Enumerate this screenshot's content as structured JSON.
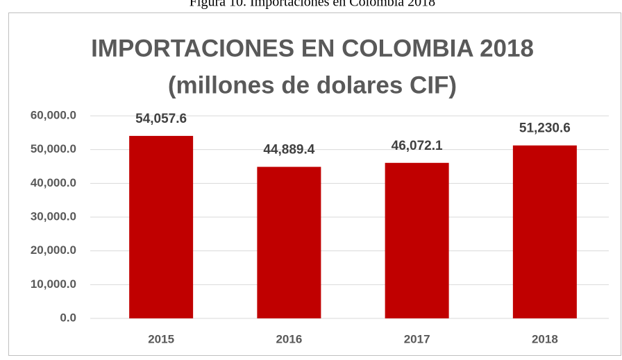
{
  "caption": "Figura 10. Importaciones en Colombia 2018",
  "chart_data": {
    "type": "bar",
    "title": [
      "IMPORTACIONES EN COLOMBIA 2018",
      "(millones de dolares CIF)"
    ],
    "categories": [
      "2015",
      "2016",
      "2017",
      "2018"
    ],
    "values": [
      54057.6,
      44889.4,
      46072.1,
      51230.6
    ],
    "value_labels": [
      "54,057.6",
      "44,889.4",
      "46,072.1",
      "51,230.6"
    ],
    "color": "#c00000",
    "ylim": [
      0,
      60000
    ],
    "yticks": [
      {
        "value": 0,
        "label": "0.0"
      },
      {
        "value": 10000,
        "label": "10,000.0"
      },
      {
        "value": 20000,
        "label": "20,000.0"
      },
      {
        "value": 30000,
        "label": "30,000.0"
      },
      {
        "value": 40000,
        "label": "40,000.0"
      },
      {
        "value": 50000,
        "label": "50,000.0"
      },
      {
        "value": 60000,
        "label": "60,000.0"
      }
    ],
    "grid": true
  }
}
